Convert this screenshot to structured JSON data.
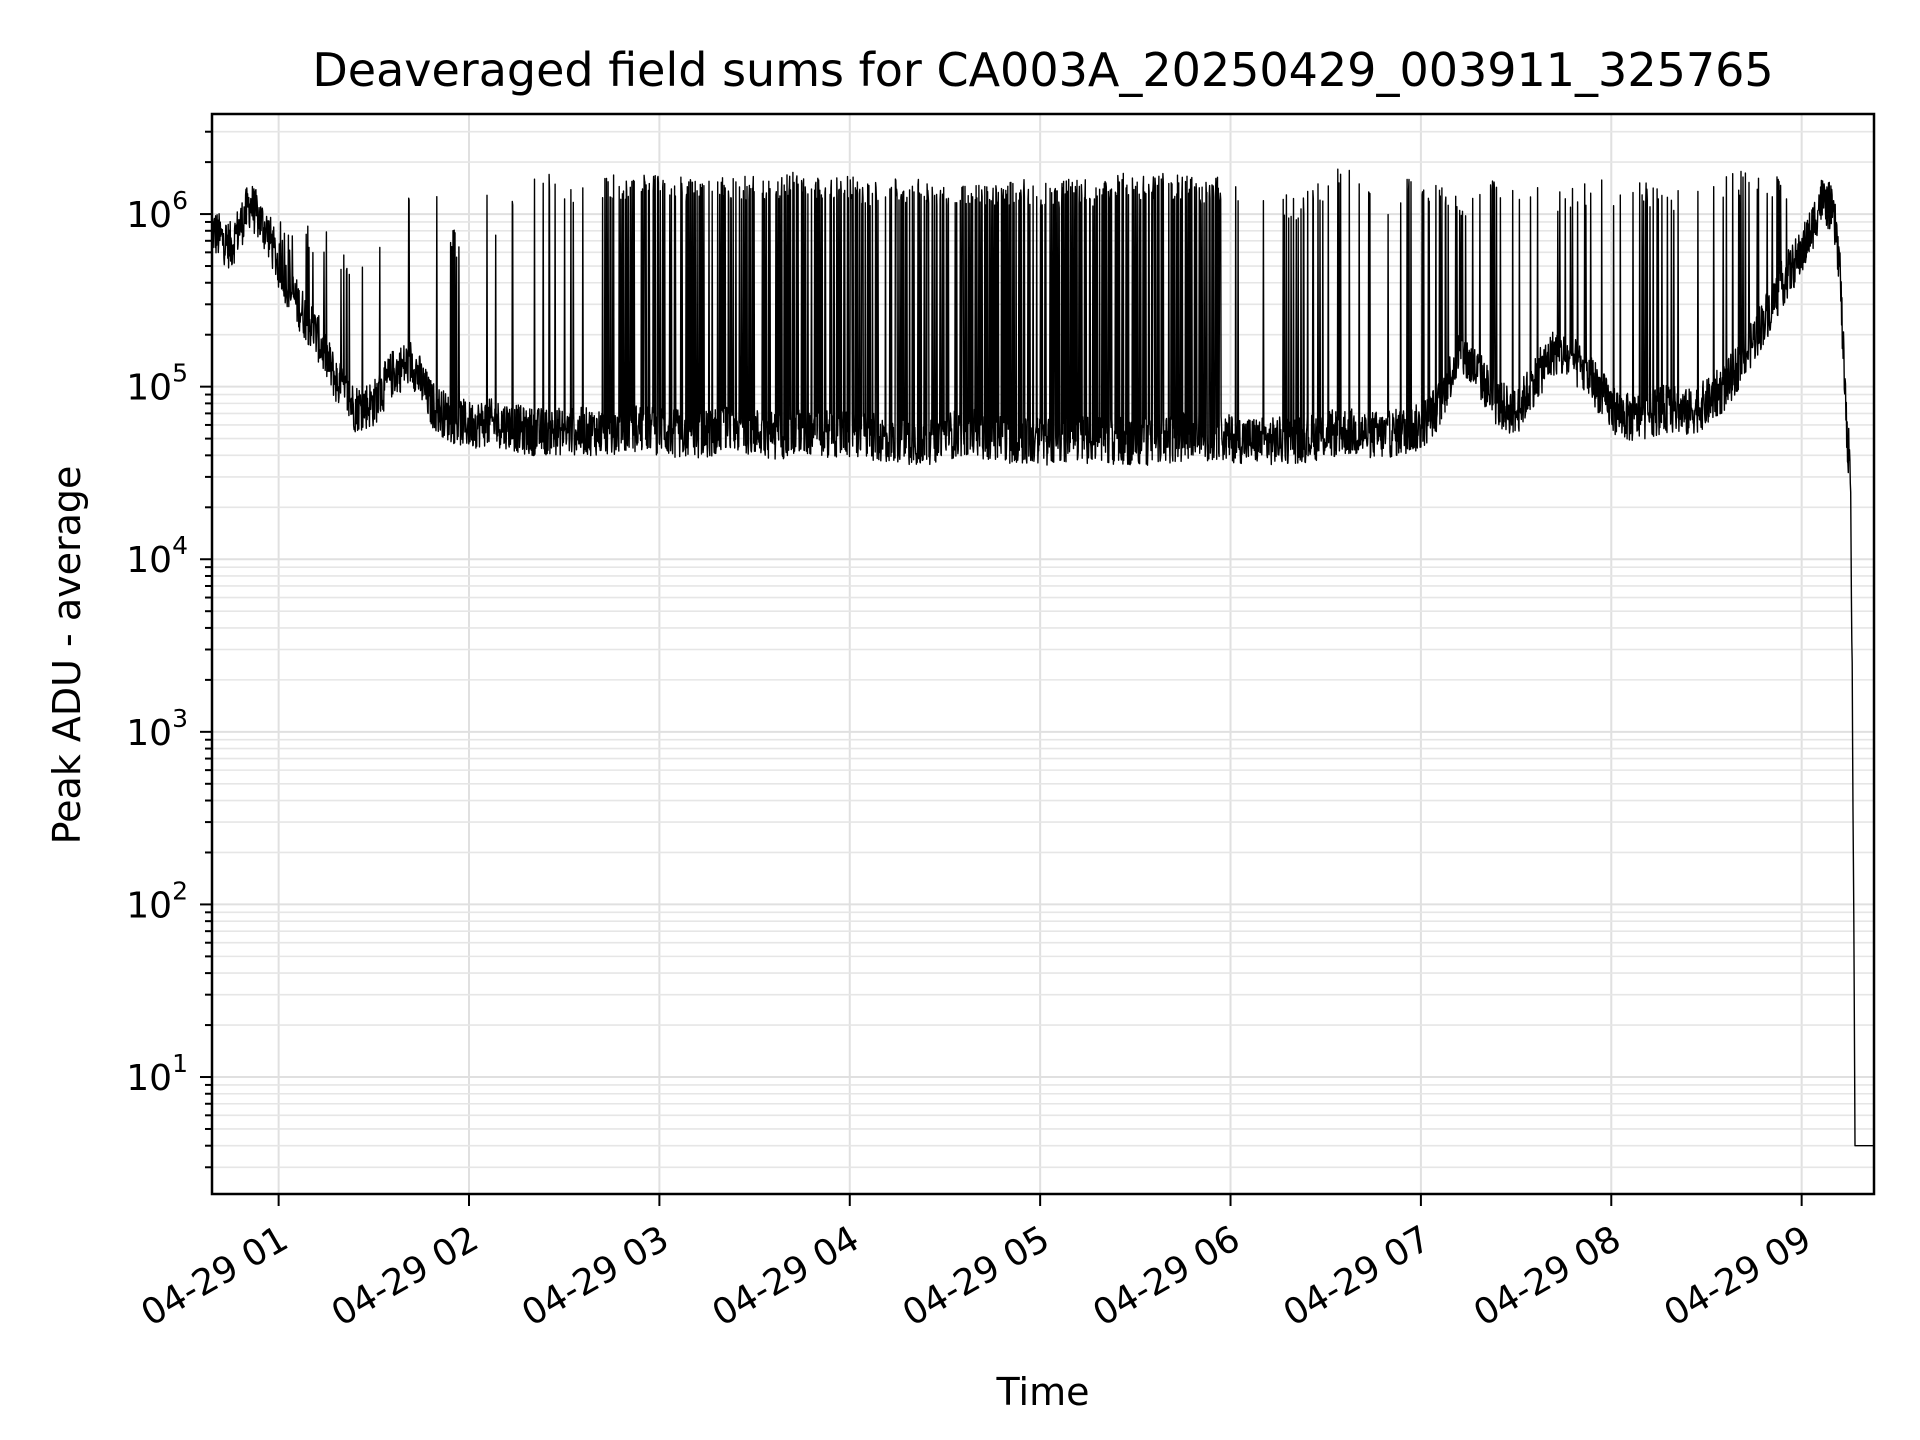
{
  "chart_data": {
    "type": "line",
    "title": "Deaveraged field sums for CA003A_20250429_003911_325765",
    "xlabel": "Time",
    "ylabel": "Peak ADU - average",
    "yscale": "log",
    "grid": true,
    "grid_minor": true,
    "line_color": "#000000",
    "grid_color": "#e0e0e0",
    "x_tick_labels": [
      "04-29 01",
      "04-29 02",
      "04-29 03",
      "04-29 04",
      "04-29 05",
      "04-29 06",
      "04-29 07",
      "04-29 08",
      "04-29 09"
    ],
    "x_tick_hours": [
      1,
      2,
      3,
      4,
      5,
      6,
      7,
      8,
      9
    ],
    "x_range_hours": [
      0.65,
      9.38
    ],
    "y_tick_labels": [
      {
        "base": "10",
        "exp": "1"
      },
      {
        "base": "10",
        "exp": "2"
      },
      {
        "base": "10",
        "exp": "3"
      },
      {
        "base": "10",
        "exp": "4"
      },
      {
        "base": "10",
        "exp": "5"
      },
      {
        "base": "10",
        "exp": "6"
      }
    ],
    "y_tick_exponents": [
      1,
      2,
      3,
      4,
      5,
      6
    ],
    "ylim": [
      2.1,
      3800000
    ],
    "baseline_series": {
      "name": "",
      "x_hours": [
        0.65,
        0.75,
        0.85,
        0.95,
        1.0,
        1.1,
        1.2,
        1.3,
        1.4,
        1.5,
        1.6,
        1.7,
        1.8,
        1.9,
        2.0,
        2.1,
        2.2,
        2.3,
        2.5,
        2.7,
        2.9,
        3.0,
        3.2,
        3.4,
        3.6,
        3.8,
        4.0,
        4.2,
        4.4,
        4.6,
        4.8,
        5.0,
        5.2,
        5.4,
        5.6,
        5.8,
        6.0,
        6.2,
        6.4,
        6.6,
        6.8,
        7.0,
        7.1,
        7.2,
        7.3,
        7.4,
        7.5,
        7.6,
        7.7,
        7.8,
        7.9,
        8.0,
        8.1,
        8.2,
        8.3,
        8.4,
        8.5,
        8.6,
        8.7,
        8.8,
        8.9,
        9.0,
        9.05,
        9.1,
        9.15,
        9.18,
        9.2,
        9.22,
        9.24,
        9.255,
        9.265,
        9.28,
        9.3,
        9.38
      ],
      "values": [
        800000,
        650000,
        1150000,
        750000,
        500000,
        300000,
        200000,
        110000,
        75000,
        80000,
        120000,
        140000,
        80000,
        65000,
        60000,
        62000,
        60000,
        55000,
        55000,
        55000,
        58000,
        55000,
        52000,
        58000,
        52000,
        55000,
        52000,
        50000,
        48000,
        55000,
        50000,
        48000,
        50000,
        48000,
        48000,
        52000,
        50000,
        48000,
        50000,
        55000,
        52000,
        58000,
        80000,
        160000,
        120000,
        80000,
        70000,
        110000,
        160000,
        140000,
        110000,
        75000,
        65000,
        70000,
        75000,
        70000,
        80000,
        100000,
        150000,
        240000,
        400000,
        600000,
        800000,
        1200000,
        1100000,
        800000,
        500000,
        150000,
        45000,
        40000,
        3000,
        5,
        4,
        4
      ]
    },
    "spike_series": {
      "name": "",
      "x_hours": [
        1.0,
        1.05,
        1.12,
        1.2,
        1.28,
        1.35,
        1.82,
        1.95,
        2.0,
        2.1,
        2.15,
        2.28,
        2.35,
        2.45,
        2.5,
        2.6,
        2.7,
        2.75,
        2.8,
        2.85,
        2.9,
        2.95,
        3.0,
        3.05,
        3.1,
        3.15,
        3.2,
        3.25,
        3.3,
        3.35,
        3.4,
        3.45,
        3.5,
        3.55,
        3.6,
        3.65,
        3.7,
        3.75,
        3.8,
        3.85,
        3.9,
        3.95,
        4.0,
        4.05,
        4.1,
        4.15,
        4.2,
        4.25,
        4.3,
        4.35,
        4.4,
        4.45,
        4.5,
        4.55,
        4.6,
        4.65,
        4.7,
        4.75,
        4.8,
        4.85,
        4.9,
        4.95,
        5.0,
        5.05,
        5.1,
        5.15,
        5.2,
        5.25,
        5.3,
        5.35,
        5.4,
        5.45,
        5.5,
        5.55,
        5.6,
        5.65,
        5.7,
        5.75,
        5.8,
        5.85,
        5.9,
        5.95,
        6.0,
        6.2,
        6.35,
        6.5,
        6.65,
        6.7,
        6.85,
        6.95,
        7.0,
        7.25,
        7.35,
        7.55,
        7.7,
        7.8,
        7.95,
        8.05,
        8.2,
        8.35,
        8.45,
        8.55,
        8.65,
        8.7,
        8.8,
        8.85,
        8.9,
        8.93
      ],
      "values": [
        900000,
        700000,
        1000000,
        600000,
        800000,
        500000,
        1600000,
        600000,
        1000000,
        1500000,
        800000,
        1500000,
        1500000,
        1550000,
        1500000,
        1450000,
        1500000,
        1550000,
        1550000,
        1550000,
        1500000,
        1550000,
        1500000,
        1500000,
        1500000,
        1450000,
        1500000,
        1450000,
        1500000,
        1500000,
        1450000,
        1500000,
        1500000,
        1450000,
        1550000,
        1550000,
        1600000,
        1550000,
        1550000,
        1450000,
        1500000,
        1500000,
        1500000,
        1450000,
        1400000,
        1400000,
        1500000,
        1450000,
        1400000,
        1450000,
        1500000,
        1400000,
        1450000,
        1400000,
        1300000,
        1500000,
        1400000,
        1300000,
        1500000,
        1400000,
        1450000,
        1400000,
        1300000,
        1400000,
        1350000,
        1500000,
        1400000,
        1450000,
        1350000,
        1400000,
        1500000,
        1600000,
        1500000,
        1550000,
        1500000,
        1600000,
        1500000,
        1550000,
        1500000,
        1400000,
        1450000,
        1500000,
        1350000,
        1400000,
        1100000,
        1500000,
        1900000,
        1300000,
        1000000,
        1900000,
        1500000,
        1200000,
        1500000,
        1500000,
        1200000,
        1300000,
        1550000,
        1300000,
        1400000,
        1300000,
        1550000,
        1600000,
        1550000,
        1650000,
        1400000,
        1550000,
        1500000,
        1400000
      ]
    }
  }
}
